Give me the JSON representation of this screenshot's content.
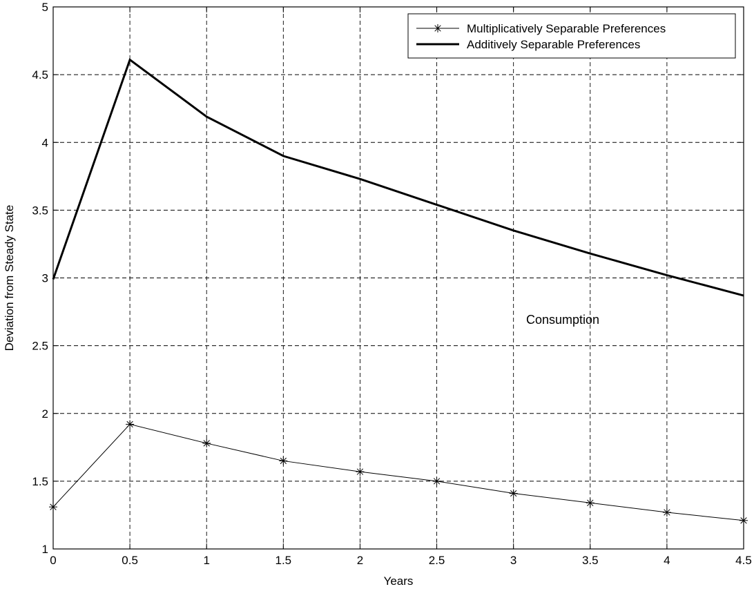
{
  "chart_data": {
    "type": "line",
    "xlabel": "Years",
    "ylabel": "Deviation from Steady State",
    "xlim": [
      0,
      4.5
    ],
    "ylim": [
      1,
      5
    ],
    "xticks": [
      "0",
      "0.5",
      "1",
      "1.5",
      "2",
      "2.5",
      "3",
      "3.5",
      "4",
      "4.5"
    ],
    "yticks": [
      "1",
      "1.5",
      "2",
      "2.5",
      "3",
      "3.5",
      "4",
      "4.5",
      "5"
    ],
    "grid": true,
    "legend_position": "top-right",
    "annotation": "Consumption",
    "x": [
      0,
      0.5,
      1,
      1.5,
      2,
      2.5,
      3,
      3.5,
      4,
      4.5
    ],
    "series": [
      {
        "name": "Multiplicatively Separable Preferences",
        "style": "thin line with star markers",
        "values": [
          1.31,
          1.92,
          1.78,
          1.65,
          1.57,
          1.5,
          1.41,
          1.34,
          1.27,
          1.21
        ]
      },
      {
        "name": "Additively Separable Preferences",
        "style": "thick solid line",
        "values": [
          2.99,
          4.61,
          4.19,
          3.9,
          3.73,
          3.54,
          3.35,
          3.18,
          3.02,
          2.87
        ]
      }
    ]
  }
}
